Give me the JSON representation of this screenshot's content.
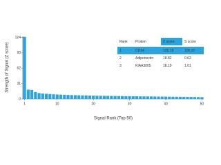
{
  "chart_data": {
    "type": "bar",
    "xlabel": "Signal Rank (Top 50)",
    "ylabel": "Strength of Signal (Z score)",
    "x": [
      1,
      2,
      3,
      4,
      5,
      6,
      7,
      8,
      9,
      10,
      11,
      12,
      13,
      14,
      15,
      16,
      17,
      18,
      19,
      20,
      21,
      22,
      23,
      24,
      25,
      26,
      27,
      28,
      29,
      30,
      31,
      32,
      33,
      34,
      35,
      36,
      37,
      38,
      39,
      40,
      41,
      42,
      43,
      44,
      45,
      46,
      47,
      48,
      49,
      50
    ],
    "values": [
      125.19,
      18.82,
      18.19,
      14,
      12,
      11,
      10.5,
      10,
      9.5,
      9,
      8.7,
      8.4,
      8.1,
      7.9,
      7.7,
      7.5,
      7.3,
      7.1,
      6.9,
      6.8,
      6.6,
      6.5,
      6.4,
      6.3,
      6.2,
      6.1,
      6.0,
      5.9,
      5.8,
      5.7,
      5.6,
      5.5,
      5.4,
      5.3,
      5.2,
      5.1,
      5.0,
      4.9,
      4.8,
      4.7,
      4.6,
      4.5,
      4.4,
      4.3,
      4.2,
      4.1,
      4.0,
      3.9,
      3.8,
      3.7
    ],
    "color": "#2ba4dd",
    "xlim": [
      0.5,
      50.5
    ],
    "xticks": [
      1,
      10,
      20,
      30,
      40,
      50
    ],
    "ylim": [
      0,
      126
    ],
    "yticks": [
      0,
      31,
      62,
      93,
      124
    ],
    "table": {
      "columns": [
        "Rank",
        "Protein",
        "Z score",
        "S score"
      ],
      "rows": [
        [
          "1",
          "CD14",
          "125.19",
          "106.37"
        ],
        [
          "2",
          "Adiponectin",
          "18.82",
          "0.62"
        ],
        [
          "3",
          "KIAA3005",
          "18.19",
          "1.01"
        ]
      ]
    }
  }
}
